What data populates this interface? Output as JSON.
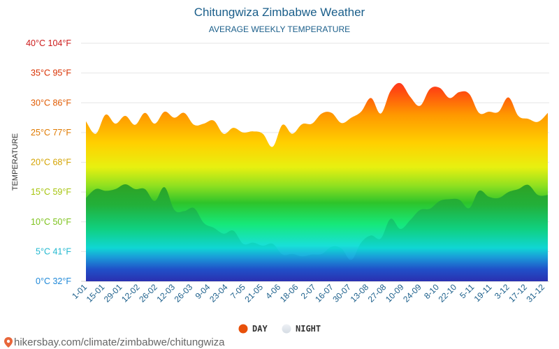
{
  "chart_data": {
    "type": "area",
    "title": "Chitungwiza Zimbabwe Weather",
    "subtitle": "AVERAGE WEEKLY TEMPERATURE",
    "ylabel": "TEMPERATURE",
    "xlabel": "",
    "ylim": [
      0,
      40
    ],
    "grid": true,
    "y_ticks": [
      {
        "value": 0,
        "label": "0°C 32°F",
        "color": "#1e88d8"
      },
      {
        "value": 5,
        "label": "5°C 41°F",
        "color": "#22b8d0"
      },
      {
        "value": 10,
        "label": "10°C 50°F",
        "color": "#7cc21a"
      },
      {
        "value": 15,
        "label": "15°C 59°F",
        "color": "#a6c40c"
      },
      {
        "value": 20,
        "label": "20°C 68°F",
        "color": "#d4a300"
      },
      {
        "value": 25,
        "label": "25°C 77°F",
        "color": "#e07a00"
      },
      {
        "value": 30,
        "label": "30°C 86°F",
        "color": "#e05a00"
      },
      {
        "value": 35,
        "label": "35°C 95°F",
        "color": "#d83000"
      },
      {
        "value": 40,
        "label": "40°C 104°F",
        "color": "#cc1a1a"
      }
    ],
    "x_labels": [
      "1-01",
      "15-01",
      "29-01",
      "12-02",
      "26-02",
      "12-03",
      "26-03",
      "9-04",
      "23-04",
      "7-05",
      "21-05",
      "4-06",
      "18-06",
      "2-07",
      "16-07",
      "30-07",
      "13-08",
      "27-08",
      "10-09",
      "24-09",
      "8-10",
      "22-10",
      "5-11",
      "19-11",
      "3-12",
      "17-12",
      "31-12"
    ],
    "series": [
      {
        "name": "DAY",
        "color": "#e8500a",
        "values": [
          26.9,
          24.8,
          28.0,
          26.5,
          27.8,
          26.3,
          28.3,
          26.5,
          28.5,
          27.5,
          28.3,
          26.3,
          26.5,
          27.0,
          24.8,
          25.8,
          25.0,
          25.2,
          24.8,
          22.6,
          26.3,
          24.8,
          26.4,
          26.5,
          28.2,
          28.3,
          26.6,
          27.5,
          28.5,
          30.8,
          28.2,
          32.0,
          33.3,
          31.0,
          29.5,
          32.3,
          32.5,
          30.8,
          31.8,
          31.5,
          28.3,
          28.5,
          28.5,
          30.9,
          27.8,
          27.3,
          26.8,
          28.3
        ]
      },
      {
        "name": "NIGHT",
        "color": "#e3e8ee",
        "values": [
          14.0,
          15.5,
          15.2,
          15.5,
          16.3,
          15.5,
          15.5,
          13.5,
          15.8,
          12.0,
          11.8,
          12.3,
          9.8,
          9.0,
          8.0,
          8.5,
          6.3,
          6.5,
          6.0,
          6.3,
          4.5,
          4.6,
          4.2,
          4.5,
          4.6,
          5.8,
          5.5,
          3.6,
          6.5,
          7.7,
          7.2,
          10.5,
          8.8,
          10.3,
          12.0,
          12.2,
          13.5,
          13.8,
          13.7,
          12.3,
          15.2,
          14.2,
          14.0,
          15.0,
          15.5,
          16.2,
          14.5,
          14.5
        ]
      }
    ]
  },
  "legend": {
    "day_label": "DAY",
    "night_label": "NIGHT"
  },
  "source": {
    "text": "hikersbay.com/climate/zimbabwe/chitungwiza"
  }
}
